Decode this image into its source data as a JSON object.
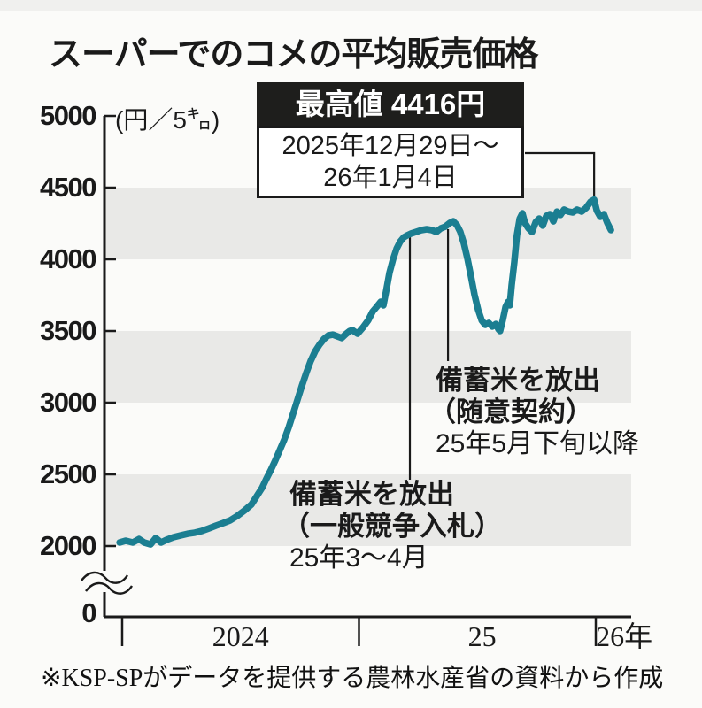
{
  "title": "スーパーでのコメの平均販売価格",
  "unit_label": "(円／5㌔)",
  "callout": {
    "max_label": "最高値 4416円",
    "period_line1": "2025年12月29日〜",
    "period_line2": "26年1月4日"
  },
  "annotations": [
    {
      "title": "備蓄米を放出",
      "subtitle": "（一般競争入札）",
      "period": "25年3〜4月",
      "line_year": 2025.215
    },
    {
      "title": "備蓄米を放出",
      "subtitle": "（随意契約）",
      "period": "25年5月下旬以降",
      "line_year": 2025.376
    }
  ],
  "source": "※KSP-SPがデータを提供する農林水産省の資料から作成",
  "colors": {
    "line": "#1b7e91",
    "band": "#e9e9e7",
    "ink": "#1a1a1a",
    "callout_bg": "#1e1e1c"
  },
  "chart_data": {
    "type": "line",
    "title": "スーパーでのコメの平均販売価格",
    "ylabel": "円/5kg",
    "x_unit": "year (fractional, weekly data)",
    "ylim": [
      2000,
      5000
    ],
    "y_axis_break_to_zero": true,
    "grid": "alternating shaded bands",
    "legend_position": "none",
    "yticks": [
      5000,
      4500,
      4000,
      3500,
      3000,
      2500,
      2000,
      0
    ],
    "shaded_bands": [
      [
        4000,
        4500
      ],
      [
        3000,
        3500
      ],
      [
        2000,
        2500
      ]
    ],
    "x_axis": {
      "tick_years": [
        2024,
        2025,
        2026
      ],
      "labels": [
        {
          "label": "2024",
          "center_year": 2024.5
        },
        {
          "label": "25",
          "center_year": 2025.52
        },
        {
          "label": "26年",
          "center_year": 2026.12
        }
      ]
    },
    "max_point": {
      "x": 2025.993,
      "value": 4416
    },
    "series": [
      {
        "name": "平均販売価格（円／5kg）",
        "points": [
          [
            2023.989,
            2025
          ],
          [
            2024.015,
            2037
          ],
          [
            2024.045,
            2025
          ],
          [
            2024.071,
            2049
          ],
          [
            2024.093,
            2025
          ],
          [
            2024.12,
            2012
          ],
          [
            2024.142,
            2056
          ],
          [
            2024.164,
            2025
          ],
          [
            2024.187,
            2043
          ],
          [
            2024.217,
            2062
          ],
          [
            2024.247,
            2074
          ],
          [
            2024.277,
            2086
          ],
          [
            2024.307,
            2093
          ],
          [
            2024.336,
            2105
          ],
          [
            2024.366,
            2123
          ],
          [
            2024.396,
            2142
          ],
          [
            2024.426,
            2160
          ],
          [
            2024.456,
            2179
          ],
          [
            2024.486,
            2210
          ],
          [
            2024.516,
            2247
          ],
          [
            2024.546,
            2290
          ],
          [
            2024.568,
            2346
          ],
          [
            2024.591,
            2407
          ],
          [
            2024.609,
            2469
          ],
          [
            2024.628,
            2531
          ],
          [
            2024.647,
            2599
          ],
          [
            2024.665,
            2667
          ],
          [
            2024.684,
            2741
          ],
          [
            2024.703,
            2827
          ],
          [
            2024.721,
            2920
          ],
          [
            2024.74,
            3019
          ],
          [
            2024.759,
            3117
          ],
          [
            2024.778,
            3210
          ],
          [
            2024.796,
            3290
          ],
          [
            2024.815,
            3358
          ],
          [
            2024.834,
            3407
          ],
          [
            2024.852,
            3444
          ],
          [
            2024.871,
            3469
          ],
          [
            2024.89,
            3475
          ],
          [
            2024.908,
            3463
          ],
          [
            2024.927,
            3451
          ],
          [
            2024.946,
            3481
          ],
          [
            2024.961,
            3500
          ],
          [
            2024.972,
            3506
          ],
          [
            2024.994,
            3481
          ],
          [
            2025.017,
            3525
          ],
          [
            2025.039,
            3574
          ],
          [
            2025.058,
            3636
          ],
          [
            2025.077,
            3673
          ],
          [
            2025.092,
            3704
          ],
          [
            2025.103,
            3679
          ],
          [
            2025.114,
            3772
          ],
          [
            2025.129,
            3907
          ],
          [
            2025.144,
            4000
          ],
          [
            2025.159,
            4074
          ],
          [
            2025.174,
            4123
          ],
          [
            2025.189,
            4154
          ],
          [
            2025.204,
            4167
          ],
          [
            2025.219,
            4179
          ],
          [
            2025.241,
            4191
          ],
          [
            2025.264,
            4204
          ],
          [
            2025.286,
            4210
          ],
          [
            2025.308,
            4204
          ],
          [
            2025.327,
            4191
          ],
          [
            2025.346,
            4216
          ],
          [
            2025.364,
            4228
          ],
          [
            2025.383,
            4253
          ],
          [
            2025.398,
            4265
          ],
          [
            2025.413,
            4240
          ],
          [
            2025.428,
            4191
          ],
          [
            2025.443,
            4111
          ],
          [
            2025.458,
            4006
          ],
          [
            2025.473,
            3883
          ],
          [
            2025.488,
            3753
          ],
          [
            2025.503,
            3648
          ],
          [
            2025.518,
            3574
          ],
          [
            2025.533,
            3543
          ],
          [
            2025.548,
            3556
          ],
          [
            2025.563,
            3531
          ],
          [
            2025.578,
            3549
          ],
          [
            2025.589,
            3512
          ],
          [
            2025.596,
            3500
          ],
          [
            2025.607,
            3574
          ],
          [
            2025.619,
            3667
          ],
          [
            2025.63,
            3704
          ],
          [
            2025.637,
            3679
          ],
          [
            2025.645,
            3821
          ],
          [
            2025.656,
            3981
          ],
          [
            2025.667,
            4167
          ],
          [
            2025.679,
            4284
          ],
          [
            2025.69,
            4321
          ],
          [
            2025.701,
            4253
          ],
          [
            2025.716,
            4216
          ],
          [
            2025.731,
            4191
          ],
          [
            2025.746,
            4259
          ],
          [
            2025.761,
            4284
          ],
          [
            2025.776,
            4235
          ],
          [
            2025.791,
            4302
          ],
          [
            2025.806,
            4315
          ],
          [
            2025.821,
            4265
          ],
          [
            2025.836,
            4333
          ],
          [
            2025.851,
            4309
          ],
          [
            2025.866,
            4346
          ],
          [
            2025.884,
            4333
          ],
          [
            2025.903,
            4327
          ],
          [
            2025.921,
            4346
          ],
          [
            2025.94,
            4333
          ],
          [
            2025.959,
            4358
          ],
          [
            2025.978,
            4401
          ],
          [
            2025.993,
            4416
          ],
          [
            2026.004,
            4340
          ],
          [
            2026.019,
            4296
          ],
          [
            2026.034,
            4315
          ],
          [
            2026.049,
            4253
          ],
          [
            2026.064,
            4204
          ]
        ]
      }
    ]
  }
}
